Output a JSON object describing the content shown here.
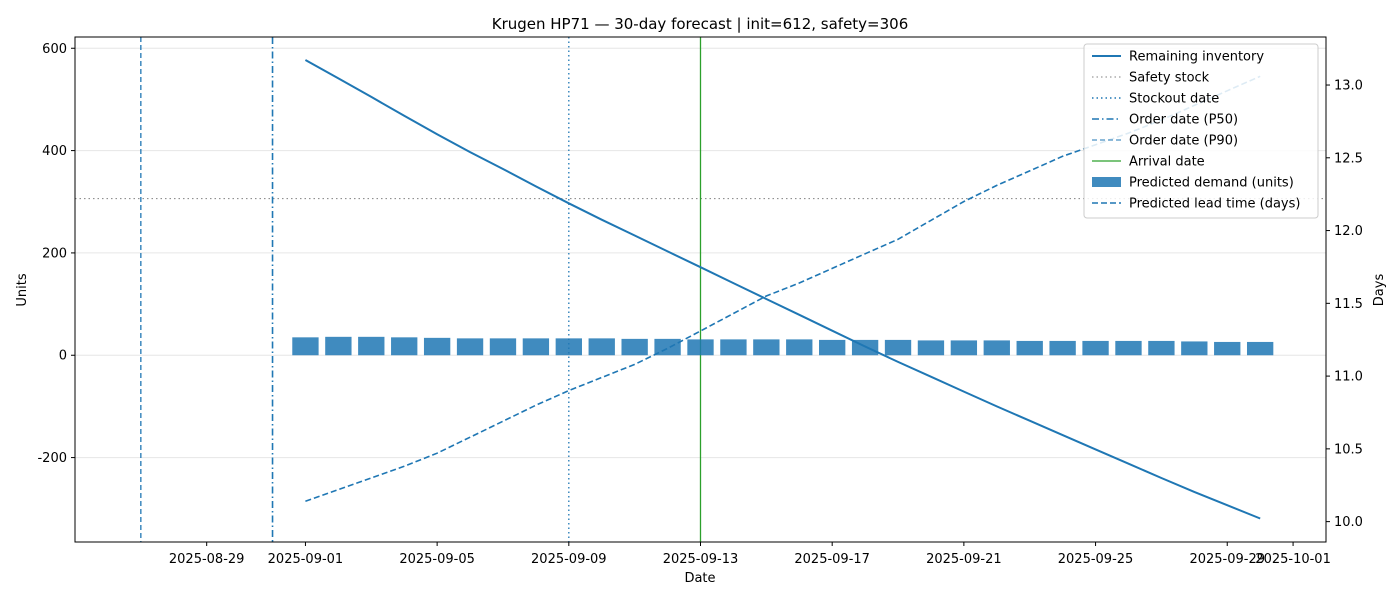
{
  "chart_data": {
    "type": "bar+line",
    "title": "Krugen HP71 — 30-day forecast | init=612, safety=306",
    "xlabel": "Date",
    "ylabel_left": "Units",
    "ylabel_right": "Days",
    "x_range": [
      "2025-08-25",
      "2025-10-02"
    ],
    "ylim_left": [
      -365,
      622
    ],
    "ylim_right": [
      9.86,
      13.33
    ],
    "x_ticks": [
      "2025-08-29",
      "2025-09-01",
      "2025-09-05",
      "2025-09-09",
      "2025-09-13",
      "2025-09-17",
      "2025-09-21",
      "2025-09-25",
      "2025-09-29",
      "2025-10-01"
    ],
    "y_ticks_left": [
      -200,
      0,
      200,
      400,
      600
    ],
    "y_ticks_right": [
      10.0,
      10.5,
      11.0,
      11.5,
      12.0,
      12.5,
      13.0
    ],
    "grid": "horizontal",
    "legend_position": "top-right",
    "dates": [
      "2025-09-01",
      "2025-09-02",
      "2025-09-03",
      "2025-09-04",
      "2025-09-05",
      "2025-09-06",
      "2025-09-07",
      "2025-09-08",
      "2025-09-09",
      "2025-09-10",
      "2025-09-11",
      "2025-09-12",
      "2025-09-13",
      "2025-09-14",
      "2025-09-15",
      "2025-09-16",
      "2025-09-17",
      "2025-09-18",
      "2025-09-19",
      "2025-09-20",
      "2025-09-21",
      "2025-09-22",
      "2025-09-23",
      "2025-09-24",
      "2025-09-25",
      "2025-09-26",
      "2025-09-27",
      "2025-09-28",
      "2025-09-29",
      "2025-09-30"
    ],
    "series": [
      {
        "name": "Predicted demand (units)",
        "kind": "bar",
        "axis": "left",
        "color": "#1f77b4",
        "values": [
          35,
          36,
          36,
          35,
          34,
          33,
          33,
          33,
          33,
          33,
          32,
          32,
          31,
          31,
          31,
          31,
          30,
          30,
          30,
          29,
          29,
          29,
          28,
          28,
          28,
          28,
          28,
          27,
          26,
          26
        ]
      },
      {
        "name": "Remaining inventory",
        "kind": "line",
        "axis": "left",
        "color": "#1f77b4",
        "values": [
          577,
          541,
          505,
          468,
          432,
          397,
          364,
          330,
          297,
          265,
          234,
          203,
          172,
          141,
          110,
          79,
          48,
          17,
          -13,
          -42,
          -71,
          -100,
          -128,
          -156,
          -184,
          -212,
          -240,
          -267,
          -293,
          -319
        ]
      },
      {
        "name": "Predicted lead time (days)",
        "kind": "line",
        "axis": "right",
        "color": "#1f77b4",
        "dashed": true,
        "values": [
          10.14,
          10.22,
          10.3,
          10.38,
          10.47,
          10.58,
          10.69,
          10.8,
          10.9,
          10.99,
          11.08,
          11.19,
          11.31,
          11.43,
          11.55,
          11.64,
          11.74,
          11.84,
          11.94,
          12.07,
          12.2,
          12.31,
          12.41,
          12.51,
          12.59,
          12.67,
          12.76,
          12.86,
          12.96,
          13.06
        ]
      }
    ],
    "reference_lines": [
      {
        "name": "Safety stock",
        "orientation": "horizontal",
        "value": 306,
        "color": "#808080",
        "style": "dotted"
      },
      {
        "name": "Stockout date",
        "orientation": "vertical",
        "date": "2025-09-09",
        "color": "#1f77b4",
        "style": "dotted"
      },
      {
        "name": "Order date (P50)",
        "orientation": "vertical",
        "date": "2025-08-31",
        "color": "#1f77b4",
        "style": "dashdot"
      },
      {
        "name": "Order date (P90)",
        "orientation": "vertical",
        "date": "2025-08-27",
        "color": "#1f77b4",
        "style": "dashed"
      },
      {
        "name": "Arrival date",
        "orientation": "vertical",
        "date": "2025-09-13",
        "color": "#2ca02c",
        "style": "solid"
      }
    ],
    "legend": [
      {
        "label": "Remaining inventory",
        "style": "solid-line"
      },
      {
        "label": "Safety stock",
        "style": "dotted-gray"
      },
      {
        "label": "Stockout date",
        "style": "dotted-line"
      },
      {
        "label": "Order date (P50)",
        "style": "dashdot-line"
      },
      {
        "label": "Order date (P90)",
        "style": "dashed-thin"
      },
      {
        "label": "Arrival date",
        "style": "green-line"
      },
      {
        "label": "Predicted demand (units)",
        "style": "bar"
      },
      {
        "label": "Predicted lead time (days)",
        "style": "dashed-line"
      }
    ]
  }
}
